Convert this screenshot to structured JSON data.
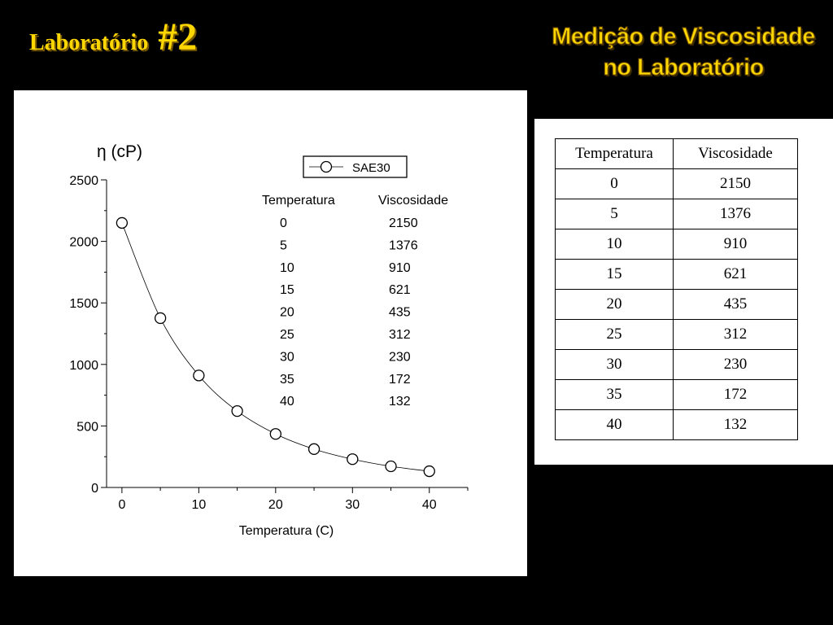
{
  "slide": {
    "title": "Laboratório",
    "title_number": "#2",
    "subtitle_line1": "Medição de Viscosidade",
    "subtitle_line2": "no Laboratório"
  },
  "colors": {
    "background": "#000000",
    "title": "#ffd700",
    "panel": "#ffffff"
  },
  "chart_data": {
    "type": "line",
    "title": "",
    "ylabel": "η (cP)",
    "xlabel": "Temperatura (C)",
    "x": [
      0,
      5,
      10,
      15,
      20,
      25,
      30,
      35,
      40
    ],
    "series": [
      {
        "name": "SAE30",
        "values": [
          2150,
          1376,
          910,
          621,
          435,
          312,
          230,
          172,
          132
        ]
      }
    ],
    "xlim": [
      -2,
      45
    ],
    "ylim": [
      0,
      2500
    ],
    "xticks": [
      0,
      10,
      20,
      30,
      40
    ],
    "yticks": [
      0,
      500,
      1000,
      1500,
      2000,
      2500
    ],
    "grid": false,
    "legend": "top-right",
    "marker": "open-circle",
    "inset_table": {
      "headers": [
        "Temperatura",
        "Viscosidade"
      ],
      "rows": [
        [
          "0",
          "2150"
        ],
        [
          "5",
          "1376"
        ],
        [
          "10",
          "910"
        ],
        [
          "15",
          "621"
        ],
        [
          "20",
          "435"
        ],
        [
          "25",
          "312"
        ],
        [
          "30",
          "230"
        ],
        [
          "35",
          "172"
        ],
        [
          "40",
          "132"
        ]
      ]
    }
  },
  "table": {
    "headers": [
      "Temperatura",
      "Viscosidade"
    ],
    "rows": [
      [
        "0",
        "2150"
      ],
      [
        "5",
        "1376"
      ],
      [
        "10",
        "910"
      ],
      [
        "15",
        "621"
      ],
      [
        "20",
        "435"
      ],
      [
        "25",
        "312"
      ],
      [
        "30",
        "230"
      ],
      [
        "35",
        "172"
      ],
      [
        "40",
        "132"
      ]
    ]
  }
}
